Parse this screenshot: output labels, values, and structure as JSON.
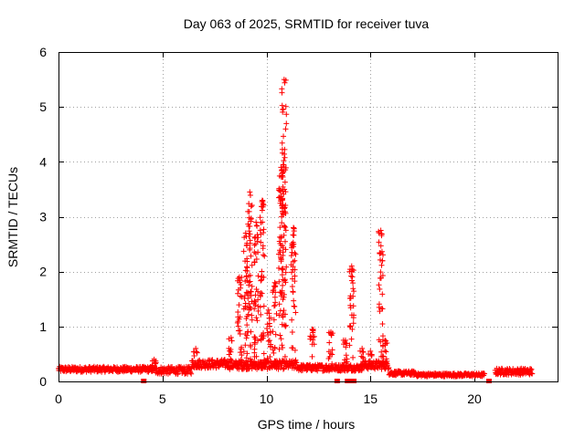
{
  "chart_data": {
    "type": "scatter",
    "title": "Day 063 of 2025, SRMTID for receiver tuva",
    "xlabel": "GPS time / hours",
    "ylabel": "SRMTID / TECUs",
    "xlim": [
      0,
      24
    ],
    "ylim": [
      0,
      6
    ],
    "xticks": [
      0,
      5,
      10,
      15,
      20
    ],
    "yticks": [
      0,
      1,
      2,
      3,
      4,
      5,
      6
    ],
    "grid": true,
    "series": [
      {
        "name": "SRMTID",
        "color": "#ff0000",
        "marker": "+",
        "baseline_segments": [
          {
            "x0": 0.0,
            "x1": 4.6,
            "y": 0.22,
            "spread": 0.05
          },
          {
            "x0": 4.6,
            "x1": 6.4,
            "y": 0.2,
            "spread": 0.07
          },
          {
            "x0": 6.4,
            "x1": 8.2,
            "y": 0.32,
            "spread": 0.08
          },
          {
            "x0": 8.2,
            "x1": 11.5,
            "y": 0.3,
            "spread": 0.08
          },
          {
            "x0": 11.5,
            "x1": 14.6,
            "y": 0.25,
            "spread": 0.06
          },
          {
            "x0": 14.6,
            "x1": 15.9,
            "y": 0.3,
            "spread": 0.08
          },
          {
            "x0": 15.9,
            "x1": 17.2,
            "y": 0.15,
            "spread": 0.04
          },
          {
            "x0": 17.2,
            "x1": 20.5,
            "y": 0.12,
            "spread": 0.03
          },
          {
            "x0": 21.0,
            "x1": 22.8,
            "y": 0.18,
            "spread": 0.06
          }
        ],
        "spike_clusters": [
          {
            "x": 4.6,
            "peak": 0.4
          },
          {
            "x": 6.6,
            "peak": 0.6
          },
          {
            "x": 8.3,
            "peak": 0.8
          },
          {
            "x": 8.7,
            "peak": 1.9
          },
          {
            "x": 9.0,
            "peak": 2.7
          },
          {
            "x": 9.2,
            "peak": 3.45
          },
          {
            "x": 9.5,
            "peak": 2.9
          },
          {
            "x": 9.8,
            "peak": 3.3
          },
          {
            "x": 10.1,
            "peak": 1.3
          },
          {
            "x": 10.4,
            "peak": 1.8
          },
          {
            "x": 10.7,
            "peak": 3.9
          },
          {
            "x": 10.85,
            "peak": 5.5
          },
          {
            "x": 11.3,
            "peak": 2.8
          },
          {
            "x": 12.2,
            "peak": 0.95
          },
          {
            "x": 13.1,
            "peak": 0.9
          },
          {
            "x": 13.8,
            "peak": 0.75
          },
          {
            "x": 14.1,
            "peak": 2.1
          },
          {
            "x": 14.6,
            "peak": 0.6
          },
          {
            "x": 15.0,
            "peak": 0.55
          },
          {
            "x": 15.5,
            "peak": 2.75
          },
          {
            "x": 15.7,
            "peak": 0.75
          }
        ],
        "zero_markers": [
          4.1,
          13.4,
          13.9,
          14.0,
          14.2,
          20.7
        ]
      }
    ]
  }
}
